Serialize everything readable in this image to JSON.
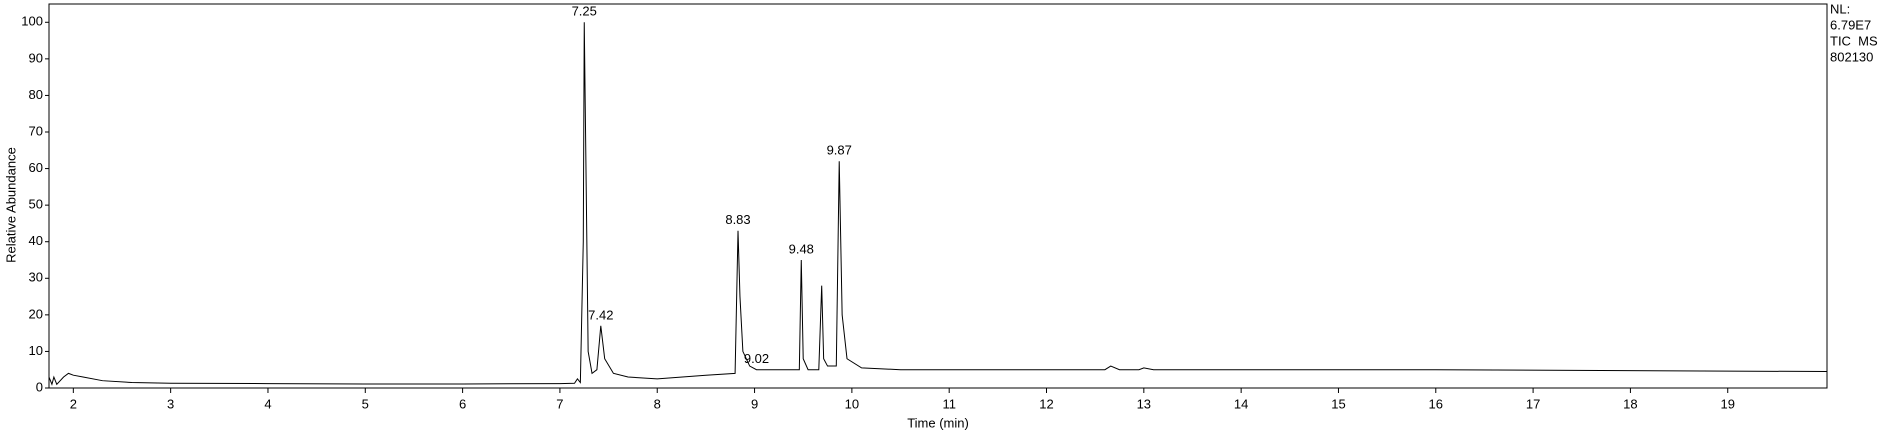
{
  "chart_data": {
    "type": "line",
    "ylabel": "Relative Abundance",
    "xlabel": "Time (min)",
    "info_lines": [
      "NL:",
      "6.79E7",
      "TIC  MS",
      "802130"
    ],
    "color": "#000000",
    "xlim": [
      1.75,
      20.02
    ],
    "ylim": [
      0,
      105
    ],
    "xticks": [
      2,
      3,
      4,
      5,
      6,
      7,
      8,
      9,
      10,
      11,
      12,
      13,
      14,
      15,
      16,
      17,
      18,
      19
    ],
    "yticks": [
      0,
      10,
      20,
      30,
      40,
      50,
      60,
      70,
      80,
      90,
      100
    ],
    "x": [
      1.75,
      1.78,
      1.8,
      1.83,
      1.9,
      1.95,
      2.0,
      2.1,
      2.3,
      2.6,
      3.0,
      4.0,
      5.0,
      6.0,
      7.0,
      7.15,
      7.18,
      7.21,
      7.24,
      7.25,
      7.27,
      7.29,
      7.33,
      7.38,
      7.42,
      7.46,
      7.55,
      7.7,
      8.0,
      8.5,
      8.8,
      8.82,
      8.83,
      8.85,
      8.88,
      8.95,
      9.02,
      9.1,
      9.46,
      9.48,
      9.5,
      9.55,
      9.66,
      9.69,
      9.71,
      9.75,
      9.84,
      9.87,
      9.9,
      9.95,
      10.1,
      10.5,
      12.6,
      12.66,
      12.75,
      12.95,
      13.0,
      13.1,
      16.0,
      20.02
    ],
    "values": [
      3,
      1,
      3,
      1,
      3,
      4,
      3.5,
      3,
      2,
      1.5,
      1.3,
      1.2,
      1.1,
      1.1,
      1.2,
      1.3,
      2.5,
      1.5,
      40,
      100,
      55,
      10,
      4,
      5,
      17,
      8,
      4,
      3,
      2.5,
      3.5,
      4,
      30,
      43,
      25,
      10,
      6,
      5,
      5,
      5,
      35,
      8,
      5,
      5,
      28,
      8,
      6,
      6,
      62,
      20,
      8,
      5.5,
      5,
      5,
      6,
      5,
      5,
      5.5,
      5,
      5,
      4.5
    ],
    "peaks": [
      {
        "x": 7.25,
        "y": 100
      },
      {
        "x": 7.42,
        "y": 17
      },
      {
        "x": 8.83,
        "y": 43
      },
      {
        "x": 9.02,
        "y": 5
      },
      {
        "x": 9.48,
        "y": 35
      },
      {
        "x": 9.87,
        "y": 62
      }
    ]
  }
}
